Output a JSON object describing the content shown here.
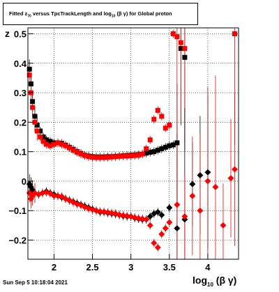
{
  "title": {
    "prefix": "Fitted  z",
    "sub1": "70",
    "middle": "  versus TpcTrackLength and log",
    "sub2": "10",
    "suffix": " (β  γ) for Global proton"
  },
  "footer": "Sun Sep  5 10:18:04 2021",
  "axes": {
    "ylabel": "z",
    "xlabel_main": "log",
    "xlabel_sub": "10",
    "xlabel_suffix": " (β γ)"
  },
  "colors": {
    "black_series": "#000000",
    "red_series": "#ff0000",
    "grid": "#000000"
  },
  "chart_data": {
    "type": "scatter",
    "xlim": [
      1.66,
      4.4
    ],
    "ylim": [
      -0.265,
      0.52
    ],
    "x_ticks": [
      2,
      2.5,
      3,
      3.5,
      4
    ],
    "y_ticks": [
      -0.2,
      -0.1,
      0,
      0.1,
      0.2,
      0.3,
      0.4,
      0.5
    ],
    "x_tick_labels": [
      "2",
      "2.5",
      "3",
      "3.5",
      "4"
    ],
    "y_tick_labels": [
      "−0.2",
      "−0.1",
      "0",
      "0.1",
      "0.2",
      "0.3",
      "0.4",
      "0.5"
    ],
    "grid": true,
    "series": [
      {
        "color": "black",
        "marker": "square",
        "x": [
          1.68,
          1.7,
          1.72,
          1.75,
          1.78,
          1.82,
          1.86,
          1.9,
          1.95,
          2.0,
          2.05,
          2.1,
          2.15,
          2.2,
          2.25,
          2.3,
          2.35,
          2.4,
          2.45,
          2.5,
          2.55,
          2.6,
          2.65,
          2.7,
          2.75,
          2.8,
          2.85,
          2.9,
          2.95,
          3.0,
          3.05,
          3.1,
          3.15,
          3.2,
          3.25,
          3.3,
          3.35,
          3.4,
          3.45,
          3.5,
          3.55,
          3.6,
          3.65,
          3.7
        ],
        "y": [
          0.38,
          0.33,
          0.27,
          0.22,
          0.19,
          0.17,
          0.15,
          0.14,
          0.135,
          0.13,
          0.13,
          0.128,
          0.122,
          0.115,
          0.108,
          0.1,
          0.094,
          0.088,
          0.085,
          0.083,
          0.082,
          0.082,
          0.082,
          0.083,
          0.083,
          0.084,
          0.085,
          0.086,
          0.087,
          0.088,
          0.089,
          0.09,
          0.092,
          0.095,
          0.098,
          0.1,
          0.105,
          0.11,
          0.115,
          0.12,
          0.123,
          0.13,
          0.45,
          0.42
        ]
      },
      {
        "color": "red",
        "marker": "square",
        "x": [
          1.68,
          1.7,
          1.72,
          1.75,
          1.78,
          1.82,
          1.86,
          1.9,
          1.95,
          2.0,
          2.05,
          2.1,
          2.15,
          2.2,
          2.25,
          2.3,
          2.35,
          2.4,
          2.45,
          2.5,
          2.55,
          2.6,
          2.65,
          2.7,
          2.75,
          2.8,
          2.85,
          2.9,
          2.95,
          3.0,
          3.05,
          3.1,
          3.15,
          3.2,
          3.25,
          3.3,
          3.35,
          3.4,
          3.45,
          3.5,
          3.55,
          3.6,
          3.65,
          3.7,
          4.35
        ],
        "y": [
          0.36,
          0.3,
          0.25,
          0.2,
          0.17,
          0.15,
          0.135,
          0.125,
          0.12,
          0.125,
          0.13,
          0.125,
          0.12,
          0.113,
          0.105,
          0.098,
          0.092,
          0.087,
          0.083,
          0.081,
          0.08,
          0.08,
          0.08,
          0.081,
          0.082,
          0.083,
          0.084,
          0.085,
          0.085,
          0.086,
          0.087,
          0.088,
          0.092,
          0.11,
          0.14,
          0.21,
          0.24,
          0.22,
          0.18,
          0.19,
          0.5,
          0.49,
          0.47,
          0.45,
          0.5
        ]
      },
      {
        "color": "black",
        "marker": "diamond",
        "x": [
          1.68,
          1.7,
          1.72,
          1.75,
          1.8,
          1.85,
          1.9,
          1.95,
          2.0,
          2.05,
          2.1,
          2.15,
          2.2,
          2.25,
          2.3,
          2.35,
          2.4,
          2.45,
          2.5,
          2.55,
          2.6,
          2.65,
          2.7,
          2.75,
          2.8,
          2.85,
          2.9,
          2.95,
          3.0,
          3.05,
          3.1,
          3.15,
          3.2,
          3.25,
          3.3,
          3.35,
          3.4,
          3.5,
          3.6,
          3.7,
          3.8,
          3.9,
          4.0
        ],
        "y": [
          -0.01,
          -0.02,
          -0.03,
          -0.04,
          -0.045,
          -0.04,
          -0.035,
          -0.04,
          -0.045,
          -0.05,
          -0.055,
          -0.06,
          -0.065,
          -0.07,
          -0.075,
          -0.08,
          -0.085,
          -0.09,
          -0.095,
          -0.1,
          -0.105,
          -0.105,
          -0.108,
          -0.11,
          -0.112,
          -0.115,
          -0.118,
          -0.12,
          -0.12,
          -0.125,
          -0.128,
          -0.13,
          -0.13,
          -0.12,
          -0.11,
          -0.105,
          -0.115,
          -0.09,
          -0.16,
          -0.13,
          -0.01,
          0.02,
          0.03
        ]
      },
      {
        "color": "red",
        "marker": "diamond",
        "x": [
          1.68,
          1.7,
          1.72,
          1.75,
          1.8,
          1.85,
          1.9,
          1.95,
          2.0,
          2.05,
          2.1,
          2.15,
          2.2,
          2.25,
          2.3,
          2.35,
          2.4,
          2.45,
          2.5,
          2.55,
          2.6,
          2.65,
          2.7,
          2.75,
          2.8,
          2.85,
          2.9,
          2.95,
          3.0,
          3.05,
          3.1,
          3.15,
          3.2,
          3.25,
          3.3,
          3.35,
          3.4,
          3.45,
          3.5,
          3.6,
          3.7,
          3.8,
          3.9,
          4.0,
          4.1,
          4.2,
          4.3,
          4.35
        ],
        "y": [
          -0.04,
          -0.06,
          -0.05,
          -0.04,
          -0.045,
          -0.04,
          -0.038,
          -0.042,
          -0.05,
          -0.05,
          -0.052,
          -0.06,
          -0.066,
          -0.072,
          -0.078,
          -0.082,
          -0.088,
          -0.093,
          -0.097,
          -0.1,
          -0.103,
          -0.104,
          -0.106,
          -0.108,
          -0.11,
          -0.114,
          -0.116,
          -0.118,
          -0.12,
          -0.123,
          -0.126,
          -0.128,
          -0.13,
          -0.15,
          -0.21,
          -0.225,
          -0.18,
          -0.16,
          -0.14,
          -0.08,
          -0.12,
          -0.05,
          -0.1,
          0.0,
          -0.02,
          -0.15,
          0.01,
          0.04
        ]
      }
    ]
  }
}
